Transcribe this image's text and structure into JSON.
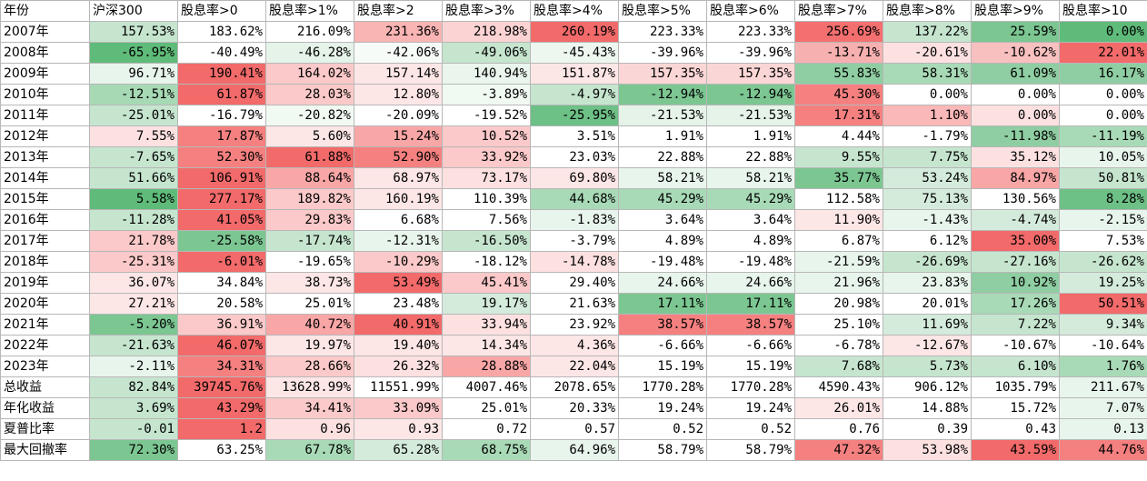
{
  "headers": [
    "年份",
    "沪深300",
    "股息率>0",
    "股息率>1%",
    "股息率>2",
    "股息率>3%",
    "股息率>4%",
    "股息率>5%",
    "股息率>6%",
    "股息率>7%",
    "股息率>8%",
    "股息率>9%",
    "股息率>10"
  ],
  "rows": [
    {
      "label": "2007年",
      "cells": [
        [
          "157.53%",
          "#c6e5cf"
        ],
        [
          "183.62%",
          "#ffffff"
        ],
        [
          "216.09%",
          "#ffffff"
        ],
        [
          "231.36%",
          "#f9b4b4"
        ],
        [
          "218.98%",
          "#fbd3d3"
        ],
        [
          "260.19%",
          "#f26a6a"
        ],
        [
          "223.33%",
          "#ffffff"
        ],
        [
          "223.33%",
          "#ffffff"
        ],
        [
          "256.69%",
          "#f46f6f"
        ],
        [
          "137.22%",
          "#c6e5cf"
        ],
        [
          "25.59%",
          "#7cc692"
        ],
        [
          "0.00%",
          "#5fbb79"
        ]
      ]
    },
    {
      "label": "2008年",
      "cells": [
        [
          "-65.95%",
          "#5fbb79"
        ],
        [
          "-40.49%",
          "#ffffff"
        ],
        [
          "-46.28%",
          "#e5f3e9"
        ],
        [
          "-42.06%",
          "#f7fbf8"
        ],
        [
          "-49.06%",
          "#c6e5cf"
        ],
        [
          "-45.43%",
          "#edf7f0"
        ],
        [
          "-39.96%",
          "#ffffff"
        ],
        [
          "-39.96%",
          "#ffffff"
        ],
        [
          "-13.71%",
          "#f7b0b0"
        ],
        [
          "-20.61%",
          "#fde1e1"
        ],
        [
          "-10.62%",
          "#f9c0c0"
        ],
        [
          "22.01%",
          "#f26a6a"
        ]
      ]
    },
    {
      "label": "2009年",
      "cells": [
        [
          "96.71%",
          "#e8f5ec"
        ],
        [
          "190.41%",
          "#f26a6a"
        ],
        [
          "164.02%",
          "#fbc9c9"
        ],
        [
          "157.14%",
          "#fde6e6"
        ],
        [
          "140.94%",
          "#eaf6ed"
        ],
        [
          "151.87%",
          "#fde6e6"
        ],
        [
          "157.35%",
          "#fbd6d6"
        ],
        [
          "157.35%",
          "#fbd6d6"
        ],
        [
          "55.83%",
          "#8fcea2"
        ],
        [
          "58.31%",
          "#a9dab7"
        ],
        [
          "61.09%",
          "#8fcea2"
        ],
        [
          "16.17%",
          "#8fcea2"
        ]
      ]
    },
    {
      "label": "2010年",
      "cells": [
        [
          "-12.51%",
          "#a7d9b5"
        ],
        [
          "61.87%",
          "#f26a6a"
        ],
        [
          "28.03%",
          "#fbc9c9"
        ],
        [
          "12.80%",
          "#fde6e6"
        ],
        [
          "-3.89%",
          "#f1f9f3"
        ],
        [
          "-4.97%",
          "#c6e5cf"
        ],
        [
          "-12.94%",
          "#7cc692"
        ],
        [
          "-12.94%",
          "#7cc692"
        ],
        [
          "45.30%",
          "#f58080"
        ],
        [
          "0.00%",
          "#ffffff"
        ],
        [
          "0.00%",
          "#ffffff"
        ],
        [
          "0.00%",
          "#ffffff"
        ]
      ]
    },
    {
      "label": "2011年",
      "cells": [
        [
          "-25.01%",
          "#c6e5cf"
        ],
        [
          "-16.79%",
          "#ffffff"
        ],
        [
          "-20.82%",
          "#f1f9f3"
        ],
        [
          "-20.09%",
          "#ffffff"
        ],
        [
          "-19.52%",
          "#ffffff"
        ],
        [
          "-25.95%",
          "#6dc086"
        ],
        [
          "-21.53%",
          "#e5f3e9"
        ],
        [
          "-21.53%",
          "#e5f3e9"
        ],
        [
          "17.31%",
          "#f58080"
        ],
        [
          "1.10%",
          "#fbb8b8"
        ],
        [
          "0.00%",
          "#fde1e1"
        ],
        [
          "0.00%",
          "#ffffff"
        ]
      ]
    },
    {
      "label": "2012年",
      "cells": [
        [
          "7.55%",
          "#fde1e1"
        ],
        [
          "17.87%",
          "#f58080"
        ],
        [
          "5.60%",
          "#fde6e6"
        ],
        [
          "15.24%",
          "#f9a6a6"
        ],
        [
          "10.52%",
          "#fbc9c9"
        ],
        [
          "3.51%",
          "#ffffff"
        ],
        [
          "1.91%",
          "#ffffff"
        ],
        [
          "1.91%",
          "#ffffff"
        ],
        [
          "4.44%",
          "#ffffff"
        ],
        [
          "-1.79%",
          "#ffffff"
        ],
        [
          "-11.98%",
          "#8fcea2"
        ],
        [
          "-11.19%",
          "#a9dab7"
        ]
      ]
    },
    {
      "label": "2013年",
      "cells": [
        [
          "-7.65%",
          "#c6e5cf"
        ],
        [
          "52.30%",
          "#f58080"
        ],
        [
          "61.88%",
          "#f26a6a"
        ],
        [
          "52.90%",
          "#f58080"
        ],
        [
          "33.92%",
          "#fbc9c9"
        ],
        [
          "23.03%",
          "#ffffff"
        ],
        [
          "22.88%",
          "#ffffff"
        ],
        [
          "22.88%",
          "#ffffff"
        ],
        [
          "9.55%",
          "#c6e5cf"
        ],
        [
          "7.75%",
          "#c6e5cf"
        ],
        [
          "35.12%",
          "#fde1e1"
        ],
        [
          "10.05%",
          "#e8f5ec"
        ]
      ]
    },
    {
      "label": "2014年",
      "cells": [
        [
          "51.66%",
          "#c6e5cf"
        ],
        [
          "106.91%",
          "#f26a6a"
        ],
        [
          "88.64%",
          "#f9a6a6"
        ],
        [
          "68.97%",
          "#fde6e6"
        ],
        [
          "73.17%",
          "#fde1e1"
        ],
        [
          "69.80%",
          "#fde6e6"
        ],
        [
          "58.21%",
          "#e8f5ec"
        ],
        [
          "58.21%",
          "#e8f5ec"
        ],
        [
          "35.77%",
          "#7cc692"
        ],
        [
          "53.24%",
          "#d4ebdb"
        ],
        [
          "84.97%",
          "#f9a6a6"
        ],
        [
          "50.81%",
          "#c6e5cf"
        ]
      ]
    },
    {
      "label": "2015年",
      "cells": [
        [
          "5.58%",
          "#5fbb79"
        ],
        [
          "277.17%",
          "#f26a6a"
        ],
        [
          "189.82%",
          "#fbc9c9"
        ],
        [
          "160.19%",
          "#fde6e6"
        ],
        [
          "110.39%",
          "#ffffff"
        ],
        [
          "44.68%",
          "#a9dab7"
        ],
        [
          "45.29%",
          "#a9dab7"
        ],
        [
          "45.29%",
          "#a9dab7"
        ],
        [
          "112.58%",
          "#ffffff"
        ],
        [
          "75.13%",
          "#d4ebdb"
        ],
        [
          "130.56%",
          "#ffffff"
        ],
        [
          "8.28%",
          "#6dc086"
        ]
      ]
    },
    {
      "label": "2016年",
      "cells": [
        [
          "-11.28%",
          "#c6e5cf"
        ],
        [
          "41.05%",
          "#f26a6a"
        ],
        [
          "29.83%",
          "#fbc9c9"
        ],
        [
          "6.68%",
          "#ffffff"
        ],
        [
          "7.56%",
          "#ffffff"
        ],
        [
          "-1.83%",
          "#e8f5ec"
        ],
        [
          "3.64%",
          "#ffffff"
        ],
        [
          "3.64%",
          "#ffffff"
        ],
        [
          "11.90%",
          "#fde6e6"
        ],
        [
          "-1.43%",
          "#e8f5ec"
        ],
        [
          "-4.74%",
          "#d4ebdb"
        ],
        [
          "-2.15%",
          "#e8f5ec"
        ]
      ]
    },
    {
      "label": "2017年",
      "cells": [
        [
          "21.78%",
          "#fbc9c9"
        ],
        [
          "-25.58%",
          "#7cc692"
        ],
        [
          "-17.74%",
          "#c6e5cf"
        ],
        [
          "-12.31%",
          "#e8f5ec"
        ],
        [
          "-16.50%",
          "#c6e5cf"
        ],
        [
          "-3.79%",
          "#ffffff"
        ],
        [
          "4.89%",
          "#ffffff"
        ],
        [
          "4.89%",
          "#ffffff"
        ],
        [
          "6.87%",
          "#ffffff"
        ],
        [
          "6.12%",
          "#ffffff"
        ],
        [
          "35.00%",
          "#f26a6a"
        ],
        [
          "7.53%",
          "#ffffff"
        ]
      ]
    },
    {
      "label": "2018年",
      "cells": [
        [
          "-25.31%",
          "#fbc9c9"
        ],
        [
          "-6.01%",
          "#f26a6a"
        ],
        [
          "-19.65%",
          "#ffffff"
        ],
        [
          "-10.29%",
          "#fbc9c9"
        ],
        [
          "-18.12%",
          "#ffffff"
        ],
        [
          "-14.78%",
          "#fde1e1"
        ],
        [
          "-19.48%",
          "#ffffff"
        ],
        [
          "-19.48%",
          "#ffffff"
        ],
        [
          "-21.59%",
          "#e8f5ec"
        ],
        [
          "-26.69%",
          "#c6e5cf"
        ],
        [
          "-27.16%",
          "#c6e5cf"
        ],
        [
          "-26.62%",
          "#c6e5cf"
        ]
      ]
    },
    {
      "label": "2019年",
      "cells": [
        [
          "36.07%",
          "#fde6e6"
        ],
        [
          "34.84%",
          "#ffffff"
        ],
        [
          "38.73%",
          "#fde6e6"
        ],
        [
          "53.49%",
          "#f26a6a"
        ],
        [
          "45.41%",
          "#fbc9c9"
        ],
        [
          "29.40%",
          "#ffffff"
        ],
        [
          "24.66%",
          "#e8f5ec"
        ],
        [
          "24.66%",
          "#e8f5ec"
        ],
        [
          "21.96%",
          "#e8f5ec"
        ],
        [
          "23.83%",
          "#e8f5ec"
        ],
        [
          "10.92%",
          "#8fcea2"
        ],
        [
          "19.25%",
          "#d4ebdb"
        ]
      ]
    },
    {
      "label": "2020年",
      "cells": [
        [
          "27.21%",
          "#fde6e6"
        ],
        [
          "20.58%",
          "#ffffff"
        ],
        [
          "25.01%",
          "#ffffff"
        ],
        [
          "23.48%",
          "#ffffff"
        ],
        [
          "19.17%",
          "#d4ebdb"
        ],
        [
          "21.63%",
          "#ffffff"
        ],
        [
          "17.11%",
          "#7cc692"
        ],
        [
          "17.11%",
          "#7cc692"
        ],
        [
          "20.98%",
          "#ffffff"
        ],
        [
          "20.01%",
          "#ffffff"
        ],
        [
          "17.26%",
          "#a9dab7"
        ],
        [
          "50.51%",
          "#f26a6a"
        ]
      ]
    },
    {
      "label": "2021年",
      "cells": [
        [
          "-5.20%",
          "#7cc692"
        ],
        [
          "36.91%",
          "#fbc9c9"
        ],
        [
          "40.72%",
          "#f9a6a6"
        ],
        [
          "40.91%",
          "#f26a6a"
        ],
        [
          "33.94%",
          "#fde1e1"
        ],
        [
          "23.92%",
          "#ffffff"
        ],
        [
          "38.57%",
          "#f58080"
        ],
        [
          "38.57%",
          "#f58080"
        ],
        [
          "25.10%",
          "#ffffff"
        ],
        [
          "11.69%",
          "#d4ebdb"
        ],
        [
          "7.22%",
          "#c6e5cf"
        ],
        [
          "9.34%",
          "#d4ebdb"
        ]
      ]
    },
    {
      "label": "2022年",
      "cells": [
        [
          "-21.63%",
          "#c6e5cf"
        ],
        [
          "46.07%",
          "#f26a6a"
        ],
        [
          "19.97%",
          "#fde6e6"
        ],
        [
          "19.40%",
          "#fde6e6"
        ],
        [
          "14.34%",
          "#fde6e6"
        ],
        [
          "4.36%",
          "#fde6e6"
        ],
        [
          "-6.66%",
          "#ffffff"
        ],
        [
          "-6.66%",
          "#ffffff"
        ],
        [
          "-6.78%",
          "#ffffff"
        ],
        [
          "-12.67%",
          "#fde6e6"
        ],
        [
          "-10.67%",
          "#ffffff"
        ],
        [
          "-10.64%",
          "#ffffff"
        ]
      ]
    },
    {
      "label": "2023年",
      "cells": [
        [
          "-2.11%",
          "#e8f5ec"
        ],
        [
          "34.31%",
          "#f58080"
        ],
        [
          "28.66%",
          "#fbc9c9"
        ],
        [
          "26.32%",
          "#fde1e1"
        ],
        [
          "28.88%",
          "#f9a6a6"
        ],
        [
          "22.04%",
          "#fde6e6"
        ],
        [
          "15.19%",
          "#ffffff"
        ],
        [
          "15.19%",
          "#ffffff"
        ],
        [
          "7.68%",
          "#c6e5cf"
        ],
        [
          "5.73%",
          "#c6e5cf"
        ],
        [
          "6.10%",
          "#c6e5cf"
        ],
        [
          "1.76%",
          "#a9dab7"
        ]
      ]
    },
    {
      "label": "总收益",
      "cells": [
        [
          "82.84%",
          "#c6e5cf"
        ],
        [
          "39745.76%",
          "#f26a6a"
        ],
        [
          "13628.99%",
          "#fde6e6"
        ],
        [
          "11551.99%",
          "#ffffff"
        ],
        [
          "4007.46%",
          "#ffffff"
        ],
        [
          "2078.65%",
          "#ffffff"
        ],
        [
          "1770.28%",
          "#ffffff"
        ],
        [
          "1770.28%",
          "#ffffff"
        ],
        [
          "4590.43%",
          "#ffffff"
        ],
        [
          "906.12%",
          "#ffffff"
        ],
        [
          "1035.79%",
          "#ffffff"
        ],
        [
          "211.67%",
          "#e8f5ec"
        ]
      ]
    },
    {
      "label": "年化收益",
      "cells": [
        [
          "3.69%",
          "#c6e5cf"
        ],
        [
          "43.29%",
          "#f26a6a"
        ],
        [
          "34.41%",
          "#fbc9c9"
        ],
        [
          "33.09%",
          "#fbc9c9"
        ],
        [
          "25.01%",
          "#ffffff"
        ],
        [
          "20.33%",
          "#ffffff"
        ],
        [
          "19.24%",
          "#ffffff"
        ],
        [
          "19.24%",
          "#ffffff"
        ],
        [
          "26.01%",
          "#fde6e6"
        ],
        [
          "14.88%",
          "#ffffff"
        ],
        [
          "15.72%",
          "#ffffff"
        ],
        [
          "7.07%",
          "#e8f5ec"
        ]
      ]
    },
    {
      "label": "夏普比率",
      "cells": [
        [
          "-0.01",
          "#c6e5cf"
        ],
        [
          "1.2",
          "#f26a6a"
        ],
        [
          "0.96",
          "#fde1e1"
        ],
        [
          "0.93",
          "#fde6e6"
        ],
        [
          "0.72",
          "#ffffff"
        ],
        [
          "0.57",
          "#ffffff"
        ],
        [
          "0.52",
          "#ffffff"
        ],
        [
          "0.52",
          "#ffffff"
        ],
        [
          "0.76",
          "#ffffff"
        ],
        [
          "0.39",
          "#ffffff"
        ],
        [
          "0.43",
          "#ffffff"
        ],
        [
          "0.13",
          "#e8f5ec"
        ]
      ]
    },
    {
      "label": "最大回撤率",
      "cells": [
        [
          "72.30%",
          "#7cc692"
        ],
        [
          "63.25%",
          "#ffffff"
        ],
        [
          "67.78%",
          "#a9dab7"
        ],
        [
          "65.28%",
          "#d4ebdb"
        ],
        [
          "68.75%",
          "#a9dab7"
        ],
        [
          "64.96%",
          "#e8f5ec"
        ],
        [
          "58.79%",
          "#ffffff"
        ],
        [
          "58.79%",
          "#ffffff"
        ],
        [
          "47.32%",
          "#f58080"
        ],
        [
          "53.98%",
          "#fde1e1"
        ],
        [
          "43.59%",
          "#f26a6a"
        ],
        [
          "44.76%",
          "#f58080"
        ]
      ]
    }
  ]
}
